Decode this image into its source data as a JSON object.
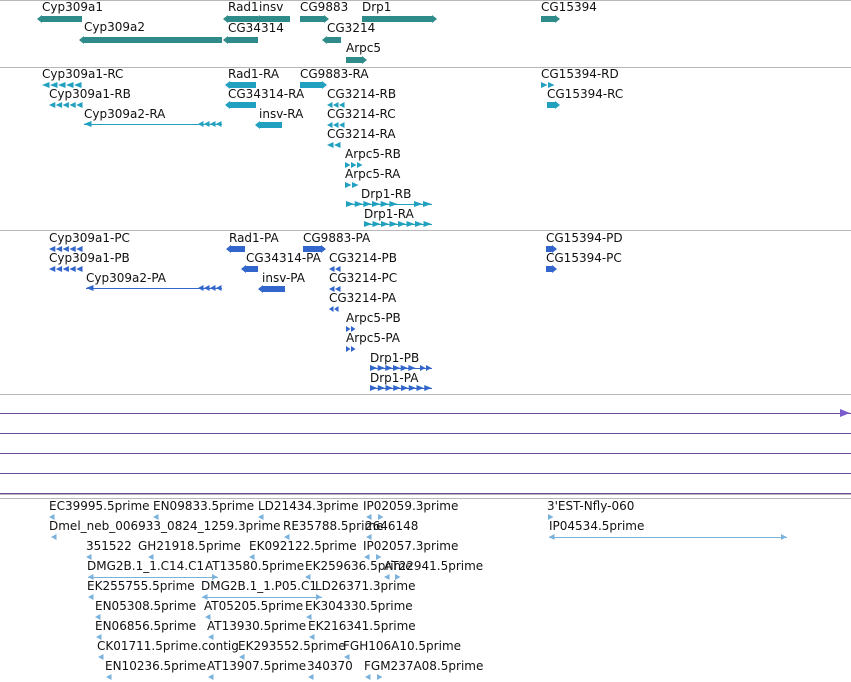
{
  "colors": {
    "gene": "#2f8a8a",
    "transcript": "#21a0bf",
    "protein": "#3366cc",
    "est": "#7ab2dc",
    "ruler": "#6a4a9a",
    "separator": "#b8b8b8"
  },
  "genes": [
    {
      "label": "Cyp309a1"
    },
    {
      "label": "Cyp309a2"
    },
    {
      "label": "Rad1"
    },
    {
      "label": "insv"
    },
    {
      "label": "CG34314"
    },
    {
      "label": "CG9883"
    },
    {
      "label": "CG3214"
    },
    {
      "label": "Arpc5"
    },
    {
      "label": "Drp1"
    },
    {
      "label": "CG15394"
    }
  ],
  "transcripts": [
    {
      "label": "Cyp309a1-RC"
    },
    {
      "label": "Cyp309a1-RB"
    },
    {
      "label": "Cyp309a2-RA"
    },
    {
      "label": "Rad1-RA"
    },
    {
      "label": "CG34314-RA"
    },
    {
      "label": "insv-RA"
    },
    {
      "label": "CG9883-RA"
    },
    {
      "label": "CG3214-RB"
    },
    {
      "label": "CG3214-RC"
    },
    {
      "label": "CG3214-RA"
    },
    {
      "label": "Arpc5-RB"
    },
    {
      "label": "Arpc5-RA"
    },
    {
      "label": "Drp1-RB"
    },
    {
      "label": "Drp1-RA"
    },
    {
      "label": "CG15394-RD"
    },
    {
      "label": "CG15394-RC"
    }
  ],
  "proteins": [
    {
      "label": "Cyp309a1-PC"
    },
    {
      "label": "Cyp309a1-PB"
    },
    {
      "label": "Cyp309a2-PA"
    },
    {
      "label": "Rad1-PA"
    },
    {
      "label": "CG34314-PA"
    },
    {
      "label": "insv-PA"
    },
    {
      "label": "CG9883-PA"
    },
    {
      "label": "CG3214-PB"
    },
    {
      "label": "CG3214-PC"
    },
    {
      "label": "CG3214-PA"
    },
    {
      "label": "Arpc5-PB"
    },
    {
      "label": "Arpc5-PA"
    },
    {
      "label": "Drp1-PB"
    },
    {
      "label": "Drp1-PA"
    },
    {
      "label": "CG15394-PD"
    },
    {
      "label": "CG15394-PC"
    }
  ],
  "ests": [
    {
      "label": "EC39995.5prime"
    },
    {
      "label": "EN09833.5prime"
    },
    {
      "label": "LD21434.3prime"
    },
    {
      "label": "IP02059.3prime"
    },
    {
      "label": "3'EST-Nfly-060"
    },
    {
      "label": "Dmel_neb_006933_0824_1259.3prime"
    },
    {
      "label": "RE35788.5prime"
    },
    {
      "label": "2646148"
    },
    {
      "label": "IP04534.5prime"
    },
    {
      "label": "351522"
    },
    {
      "label": "GH21918.5prime"
    },
    {
      "label": "EK092122.5prime"
    },
    {
      "label": "IP02057.3prime"
    },
    {
      "label": "DMG2B.1_1.C14.C1"
    },
    {
      "label": "AT13580.5prime"
    },
    {
      "label": "EK259636.5prime"
    },
    {
      "label": "AT22941.5prime"
    },
    {
      "label": "EK255755.5prime"
    },
    {
      "label": "DMG2B.1_1.P05.C1"
    },
    {
      "label": "LD26371.3prime"
    },
    {
      "label": "EN05308.5prime"
    },
    {
      "label": "AT05205.5prime"
    },
    {
      "label": "EK304330.5prime"
    },
    {
      "label": "EN06856.5prime"
    },
    {
      "label": "AT13930.5prime"
    },
    {
      "label": "EK216341.5prime"
    },
    {
      "label": "CK01711.5prime.contig"
    },
    {
      "label": "EK293552.5prime"
    },
    {
      "label": "FGH106A10.5prime"
    },
    {
      "label": "EN10236.5prime"
    },
    {
      "label": "AT13907.5prime"
    },
    {
      "label": "340370"
    },
    {
      "label": "FGM237A08.5prime"
    }
  ]
}
